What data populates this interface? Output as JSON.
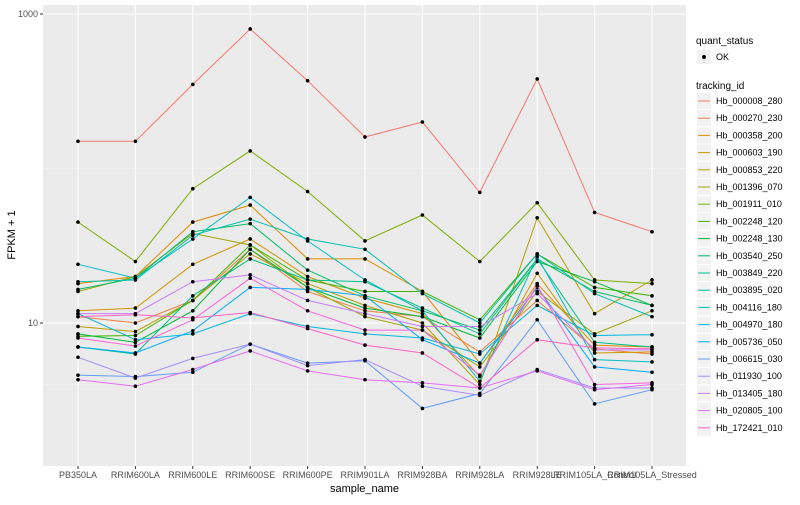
{
  "chart_data": {
    "type": "line",
    "xlabel": "sample_name",
    "ylabel": "FPKM + 1",
    "y_scale": "log10",
    "ylim": [
      1.6,
      1000
    ],
    "y_ticks": [
      10,
      1000
    ],
    "y_tick_labels": [
      "10",
      "1000"
    ],
    "grid": true,
    "legend_position": "right",
    "categories": [
      "PB350LA",
      "RRIM600LA",
      "RRIM600LE",
      "RRIM600SE",
      "RRIM600PE",
      "RRIM901LA",
      "RRIM928BA",
      "RRIM928LA",
      "RRIM928LE",
      "RRIM105LA_Control",
      "RRIM105LA_Stressed"
    ],
    "point_legend": {
      "title": "quant_status",
      "entries": [
        "OK"
      ]
    },
    "color_legend_title": "tracking_id",
    "series": [
      {
        "name": "Hb_000008_280",
        "color": "#F8766D",
        "values": [
          150,
          150,
          350,
          800,
          370,
          160,
          200,
          70,
          380,
          52,
          39
        ]
      },
      {
        "name": "Hb_000270_230",
        "color": "#EE8044",
        "values": [
          11,
          10,
          14,
          30,
          16,
          12,
          11,
          6.5,
          14,
          6.8,
          6.3
        ]
      },
      {
        "name": "Hb_000358_200",
        "color": "#E08B00",
        "values": [
          18,
          20,
          45,
          58,
          26,
          26,
          16,
          5.5,
          18,
          7.2,
          7
        ]
      },
      {
        "name": "Hb_000603_190",
        "color": "#CF9400",
        "values": [
          12,
          12.5,
          24,
          35,
          20,
          14.5,
          11.5,
          4.5,
          21,
          6.4,
          6.5
        ]
      },
      {
        "name": "Hb_000853_220",
        "color": "#B99E00",
        "values": [
          9.5,
          8.8,
          14,
          28,
          18,
          13,
          10,
          4,
          48,
          11.5,
          19
        ]
      },
      {
        "name": "Hb_001396_070",
        "color": "#9EA700",
        "values": [
          16,
          20,
          38,
          32,
          17,
          11,
          9,
          5.2,
          16,
          8.5,
          12
        ]
      },
      {
        "name": "Hb_001911_010",
        "color": "#7CAE00",
        "values": [
          45,
          25,
          74,
          130,
          71,
          34,
          50,
          25,
          60,
          19,
          18
        ]
      },
      {
        "name": "Hb_002248_120",
        "color": "#3EB500",
        "values": [
          8.2,
          8.3,
          14,
          32,
          19,
          16,
          16,
          10.5,
          28,
          17,
          15
        ]
      },
      {
        "name": "Hb_002248_130",
        "color": "#00BA38",
        "values": [
          8.5,
          7.5,
          12,
          30,
          17,
          12.5,
          11,
          8,
          25,
          18.5,
          13
        ]
      },
      {
        "name": "Hb_003540_250",
        "color": "#00BE67",
        "values": [
          16.5,
          19.5,
          39,
          44,
          22,
          15,
          12,
          9,
          26,
          16,
          13
        ]
      },
      {
        "name": "Hb_003849_220",
        "color": "#00C08D",
        "values": [
          7,
          6.3,
          15,
          26,
          19,
          18.5,
          12.5,
          8.5,
          26,
          7.5,
          7
        ]
      },
      {
        "name": "Hb_003895_020",
        "color": "#00C1AB",
        "values": [
          18.5,
          19,
          37,
          47,
          35,
          30,
          15.5,
          10,
          28,
          15.5,
          11
        ]
      },
      {
        "name": "Hb_004116_180",
        "color": "#00BFC4",
        "values": [
          24,
          19.5,
          35,
          65,
          34,
          19,
          12,
          4.2,
          27,
          5.8,
          5.6
        ]
      },
      {
        "name": "Hb_004970_180",
        "color": "#00B8E3",
        "values": [
          11.5,
          7.8,
          8.5,
          11.5,
          9.5,
          8.5,
          8,
          6.3,
          13,
          8.3,
          8.4
        ]
      },
      {
        "name": "Hb_005736_050",
        "color": "#00ABFD",
        "values": [
          7,
          6.4,
          8.9,
          17,
          16.5,
          15,
          7.8,
          5.5,
          17,
          5.2,
          4.8
        ]
      },
      {
        "name": "Hb_006615_030",
        "color": "#619CFF",
        "values": [
          4.6,
          4.5,
          4.8,
          7.3,
          5.5,
          5.7,
          2.8,
          3.5,
          10.5,
          3,
          3.7
        ]
      },
      {
        "name": "Hb_011930_100",
        "color": "#A58AFF",
        "values": [
          6,
          4.4,
          5.9,
          7.3,
          5.3,
          5.8,
          3.9,
          3.4,
          5,
          3.8,
          3.8
        ]
      },
      {
        "name": "Hb_013405_180",
        "color": "#C77CFF",
        "values": [
          11.5,
          11.5,
          18.5,
          20.5,
          14,
          11.5,
          9.5,
          9.5,
          15.5,
          6.7,
          6.7
        ]
      },
      {
        "name": "Hb_020805_100",
        "color": "#E76BF3",
        "values": [
          4.3,
          3.9,
          5,
          6.6,
          4.9,
          4.3,
          4.1,
          3.8,
          4.9,
          3.7,
          4
        ]
      },
      {
        "name": "Hb_172421_010",
        "color": "#FA62DB",
        "values": [
          8,
          7.1,
          10.5,
          19.5,
          12,
          9,
          9,
          4.6,
          17.5,
          4,
          4.1
        ]
      },
      {
        "name": "",
        "color": "#FF61C3",
        "values": [
          11,
          11.3,
          10.8,
          11.7,
          9.2,
          7.2,
          6.4,
          3.8,
          7.8,
          6.9,
          6.8
        ]
      }
    ]
  }
}
